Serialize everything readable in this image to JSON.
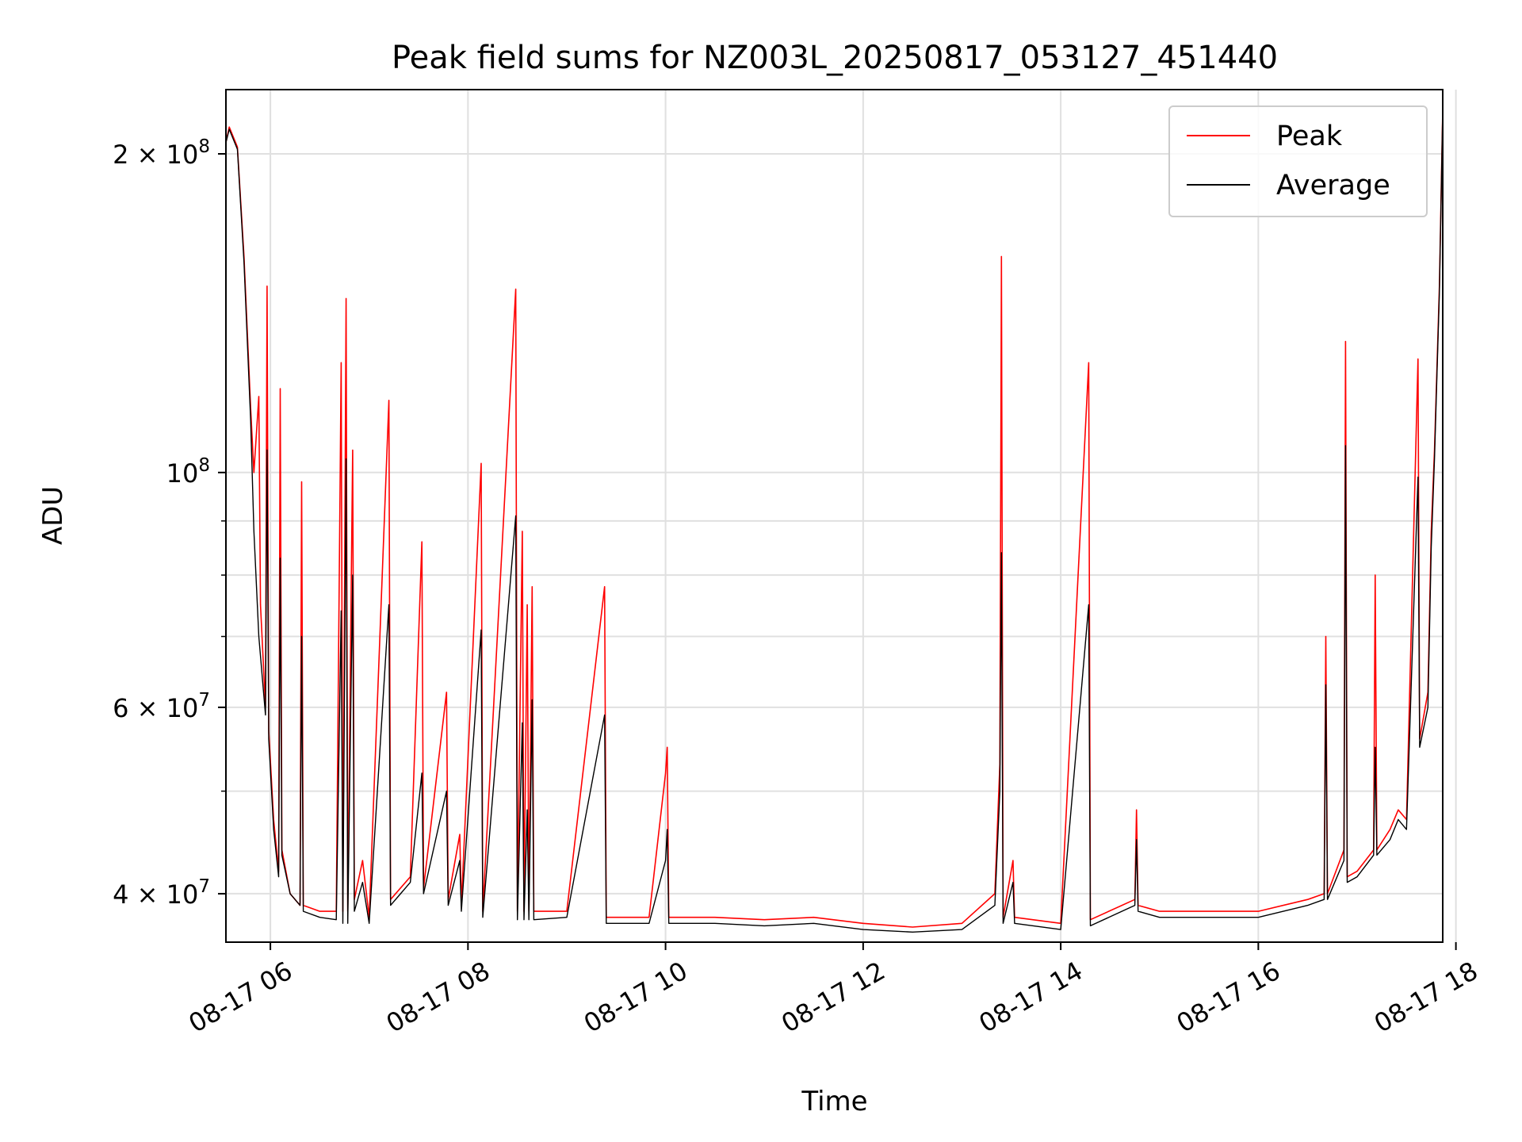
{
  "chart_data": {
    "type": "line",
    "title": "Peak field sums for NZ003L_20250817_053127_451440",
    "xlabel": "Time",
    "ylabel": "ADU",
    "yscale": "log",
    "xlim": [
      "2025-08-17 05:33",
      "2025-08-17 17:52"
    ],
    "ylim": [
      36000000,
      230000000
    ],
    "grid": true,
    "legend_position": "upper right",
    "x_ticks": [
      "08-17 06",
      "08-17 08",
      "08-17 10",
      "08-17 12",
      "08-17 14",
      "08-17 16",
      "08-17 18"
    ],
    "y_ticks": [
      {
        "value": 40000000,
        "label": "4 × 10^7",
        "mantissa": "4",
        "exponent": "7"
      },
      {
        "value": 60000000,
        "label": "6 × 10^7",
        "mantissa": "6",
        "exponent": "7"
      },
      {
        "value": 100000000,
        "label": "10^8",
        "mantissa": "",
        "exponent": "8"
      },
      {
        "value": 200000000,
        "label": "2 × 10^8",
        "mantissa": "2",
        "exponent": "8"
      }
    ],
    "y_minor_ticks": [
      50000000,
      70000000,
      80000000,
      90000000
    ],
    "series": [
      {
        "name": "Peak",
        "color": "#ff0000",
        "points": [
          [
            "2025-08-17 05:33",
            205000000
          ],
          [
            "2025-08-17 05:35",
            212000000
          ],
          [
            "2025-08-17 05:40",
            203000000
          ],
          [
            "2025-08-17 05:44",
            160000000
          ],
          [
            "2025-08-17 05:48",
            115000000
          ],
          [
            "2025-08-17 05:50",
            100000000
          ],
          [
            "2025-08-17 05:53",
            118000000
          ],
          [
            "2025-08-17 05:54",
            75000000
          ],
          [
            "2025-08-17 05:57",
            60000000
          ],
          [
            "2025-08-17 05:58",
            150000000
          ],
          [
            "2025-08-17 05:59",
            57000000
          ],
          [
            "2025-08-17 06:02",
            47000000
          ],
          [
            "2025-08-17 06:05",
            42000000
          ],
          [
            "2025-08-17 06:06",
            120000000
          ],
          [
            "2025-08-17 06:07",
            44000000
          ],
          [
            "2025-08-17 06:12",
            40000000
          ],
          [
            "2025-08-17 06:18",
            39000000
          ],
          [
            "2025-08-17 06:19",
            98000000
          ],
          [
            "2025-08-17 06:20",
            39000000
          ],
          [
            "2025-08-17 06:30",
            38500000
          ],
          [
            "2025-08-17 06:40",
            38500000
          ],
          [
            "2025-08-17 06:43",
            127000000
          ],
          [
            "2025-08-17 06:44",
            38500000
          ],
          [
            "2025-08-17 06:46",
            146000000
          ],
          [
            "2025-08-17 06:47",
            38500000
          ],
          [
            "2025-08-17 06:50",
            105000000
          ],
          [
            "2025-08-17 06:51",
            39500000
          ],
          [
            "2025-08-17 06:56",
            43000000
          ],
          [
            "2025-08-17 07:00",
            38000000
          ],
          [
            "2025-08-17 07:12",
            117000000
          ],
          [
            "2025-08-17 07:13",
            39500000
          ],
          [
            "2025-08-17 07:25",
            41500000
          ],
          [
            "2025-08-17 07:32",
            86000000
          ],
          [
            "2025-08-17 07:33",
            40500000
          ],
          [
            "2025-08-17 07:47",
            62000000
          ],
          [
            "2025-08-17 07:48",
            39500000
          ],
          [
            "2025-08-17 07:55",
            45500000
          ],
          [
            "2025-08-17 07:56",
            39000000
          ],
          [
            "2025-08-17 08:08",
            102000000
          ],
          [
            "2025-08-17 08:09",
            38500000
          ],
          [
            "2025-08-17 08:29",
            149000000
          ],
          [
            "2025-08-17 08:30",
            38500000
          ],
          [
            "2025-08-17 08:33",
            88000000
          ],
          [
            "2025-08-17 08:34",
            38500000
          ],
          [
            "2025-08-17 08:36",
            75000000
          ],
          [
            "2025-08-17 08:37",
            38500000
          ],
          [
            "2025-08-17 08:39",
            78000000
          ],
          [
            "2025-08-17 08:40",
            38500000
          ],
          [
            "2025-08-17 09:00",
            38500000
          ],
          [
            "2025-08-17 09:23",
            78000000
          ],
          [
            "2025-08-17 09:24",
            38000000
          ],
          [
            "2025-08-17 09:50",
            38000000
          ],
          [
            "2025-08-17 10:00",
            52000000
          ],
          [
            "2025-08-17 10:01",
            55000000
          ],
          [
            "2025-08-17 10:02",
            38000000
          ],
          [
            "2025-08-17 10:30",
            38000000
          ],
          [
            "2025-08-17 11:00",
            37800000
          ],
          [
            "2025-08-17 11:30",
            38000000
          ],
          [
            "2025-08-17 12:00",
            37500000
          ],
          [
            "2025-08-17 12:30",
            37200000
          ],
          [
            "2025-08-17 13:00",
            37500000
          ],
          [
            "2025-08-17 13:20",
            40000000
          ],
          [
            "2025-08-17 13:23",
            53000000
          ],
          [
            "2025-08-17 13:24",
            160000000
          ],
          [
            "2025-08-17 13:25",
            38000000
          ],
          [
            "2025-08-17 13:31",
            43000000
          ],
          [
            "2025-08-17 13:32",
            38000000
          ],
          [
            "2025-08-17 14:00",
            37500000
          ],
          [
            "2025-08-17 14:17",
            127000000
          ],
          [
            "2025-08-17 14:18",
            37800000
          ],
          [
            "2025-08-17 14:45",
            39500000
          ],
          [
            "2025-08-17 14:46",
            48000000
          ],
          [
            "2025-08-17 14:47",
            39000000
          ],
          [
            "2025-08-17 15:00",
            38500000
          ],
          [
            "2025-08-17 15:30",
            38500000
          ],
          [
            "2025-08-17 16:00",
            38500000
          ],
          [
            "2025-08-17 16:30",
            39500000
          ],
          [
            "2025-08-17 16:40",
            40000000
          ],
          [
            "2025-08-17 16:41",
            70000000
          ],
          [
            "2025-08-17 16:42",
            40000000
          ],
          [
            "2025-08-17 16:52",
            44000000
          ],
          [
            "2025-08-17 16:53",
            133000000
          ],
          [
            "2025-08-17 16:54",
            41500000
          ],
          [
            "2025-08-17 17:00",
            42000000
          ],
          [
            "2025-08-17 17:10",
            44000000
          ],
          [
            "2025-08-17 17:11",
            80000000
          ],
          [
            "2025-08-17 17:12",
            44000000
          ],
          [
            "2025-08-17 17:20",
            46000000
          ],
          [
            "2025-08-17 17:25",
            48000000
          ],
          [
            "2025-08-17 17:30",
            47000000
          ],
          [
            "2025-08-17 17:37",
            128000000
          ],
          [
            "2025-08-17 17:38",
            56000000
          ],
          [
            "2025-08-17 17:43",
            62000000
          ],
          [
            "2025-08-17 17:45",
            88000000
          ],
          [
            "2025-08-17 17:47",
            105000000
          ],
          [
            "2025-08-17 17:50",
            150000000
          ],
          [
            "2025-08-17 17:52",
            220000000
          ]
        ]
      },
      {
        "name": "Average",
        "color": "#000000",
        "points": [
          [
            "2025-08-17 05:33",
            205000000
          ],
          [
            "2025-08-17 05:35",
            211000000
          ],
          [
            "2025-08-17 05:40",
            202000000
          ],
          [
            "2025-08-17 05:44",
            158000000
          ],
          [
            "2025-08-17 05:48",
            112000000
          ],
          [
            "2025-08-17 05:50",
            88000000
          ],
          [
            "2025-08-17 05:53",
            70000000
          ],
          [
            "2025-08-17 05:57",
            59000000
          ],
          [
            "2025-08-17 05:58",
            105000000
          ],
          [
            "2025-08-17 05:59",
            56000000
          ],
          [
            "2025-08-17 06:02",
            46000000
          ],
          [
            "2025-08-17 06:05",
            41500000
          ],
          [
            "2025-08-17 06:06",
            83000000
          ],
          [
            "2025-08-17 06:07",
            43500000
          ],
          [
            "2025-08-17 06:12",
            40000000
          ],
          [
            "2025-08-17 06:18",
            39000000
          ],
          [
            "2025-08-17 06:19",
            70000000
          ],
          [
            "2025-08-17 06:20",
            38500000
          ],
          [
            "2025-08-17 06:30",
            38000000
          ],
          [
            "2025-08-17 06:40",
            37800000
          ],
          [
            "2025-08-17 06:43",
            74000000
          ],
          [
            "2025-08-17 06:44",
            37500000
          ],
          [
            "2025-08-17 06:46",
            103000000
          ],
          [
            "2025-08-17 06:47",
            37500000
          ],
          [
            "2025-08-17 06:50",
            80000000
          ],
          [
            "2025-08-17 06:51",
            38500000
          ],
          [
            "2025-08-17 06:56",
            41000000
          ],
          [
            "2025-08-17 07:00",
            37500000
          ],
          [
            "2025-08-17 07:12",
            75000000
          ],
          [
            "2025-08-17 07:13",
            39000000
          ],
          [
            "2025-08-17 07:25",
            41000000
          ],
          [
            "2025-08-17 07:32",
            52000000
          ],
          [
            "2025-08-17 07:33",
            40000000
          ],
          [
            "2025-08-17 07:47",
            50000000
          ],
          [
            "2025-08-17 07:48",
            39000000
          ],
          [
            "2025-08-17 07:55",
            43000000
          ],
          [
            "2025-08-17 07:56",
            38500000
          ],
          [
            "2025-08-17 08:08",
            71000000
          ],
          [
            "2025-08-17 08:09",
            38000000
          ],
          [
            "2025-08-17 08:29",
            91000000
          ],
          [
            "2025-08-17 08:30",
            37800000
          ],
          [
            "2025-08-17 08:33",
            58000000
          ],
          [
            "2025-08-17 08:34",
            37800000
          ],
          [
            "2025-08-17 08:36",
            48000000
          ],
          [
            "2025-08-17 08:37",
            37800000
          ],
          [
            "2025-08-17 08:39",
            61000000
          ],
          [
            "2025-08-17 08:40",
            37800000
          ],
          [
            "2025-08-17 09:00",
            38000000
          ],
          [
            "2025-08-17 09:23",
            59000000
          ],
          [
            "2025-08-17 09:24",
            37500000
          ],
          [
            "2025-08-17 09:50",
            37500000
          ],
          [
            "2025-08-17 10:00",
            43000000
          ],
          [
            "2025-08-17 10:01",
            46000000
          ],
          [
            "2025-08-17 10:02",
            37500000
          ],
          [
            "2025-08-17 10:30",
            37500000
          ],
          [
            "2025-08-17 11:00",
            37300000
          ],
          [
            "2025-08-17 11:30",
            37500000
          ],
          [
            "2025-08-17 12:00",
            37000000
          ],
          [
            "2025-08-17 12:30",
            36800000
          ],
          [
            "2025-08-17 13:00",
            37000000
          ],
          [
            "2025-08-17 13:20",
            39000000
          ],
          [
            "2025-08-17 13:23",
            50000000
          ],
          [
            "2025-08-17 13:24",
            84000000
          ],
          [
            "2025-08-17 13:25",
            37500000
          ],
          [
            "2025-08-17 13:31",
            41000000
          ],
          [
            "2025-08-17 13:32",
            37500000
          ],
          [
            "2025-08-17 14:00",
            37000000
          ],
          [
            "2025-08-17 14:17",
            75000000
          ],
          [
            "2025-08-17 14:18",
            37300000
          ],
          [
            "2025-08-17 14:45",
            39000000
          ],
          [
            "2025-08-17 14:46",
            45000000
          ],
          [
            "2025-08-17 14:47",
            38500000
          ],
          [
            "2025-08-17 15:00",
            38000000
          ],
          [
            "2025-08-17 15:30",
            38000000
          ],
          [
            "2025-08-17 16:00",
            38000000
          ],
          [
            "2025-08-17 16:30",
            39000000
          ],
          [
            "2025-08-17 16:40",
            39500000
          ],
          [
            "2025-08-17 16:41",
            63000000
          ],
          [
            "2025-08-17 16:42",
            39500000
          ],
          [
            "2025-08-17 16:52",
            43000000
          ],
          [
            "2025-08-17 16:53",
            106000000
          ],
          [
            "2025-08-17 16:54",
            41000000
          ],
          [
            "2025-08-17 17:00",
            41500000
          ],
          [
            "2025-08-17 17:10",
            43500000
          ],
          [
            "2025-08-17 17:11",
            55000000
          ],
          [
            "2025-08-17 17:12",
            43500000
          ],
          [
            "2025-08-17 17:20",
            45000000
          ],
          [
            "2025-08-17 17:25",
            47000000
          ],
          [
            "2025-08-17 17:30",
            46000000
          ],
          [
            "2025-08-17 17:37",
            99000000
          ],
          [
            "2025-08-17 17:38",
            55000000
          ],
          [
            "2025-08-17 17:43",
            60000000
          ],
          [
            "2025-08-17 17:45",
            85000000
          ],
          [
            "2025-08-17 17:47",
            103000000
          ],
          [
            "2025-08-17 17:50",
            148000000
          ],
          [
            "2025-08-17 17:52",
            220000000
          ]
        ]
      }
    ]
  }
}
